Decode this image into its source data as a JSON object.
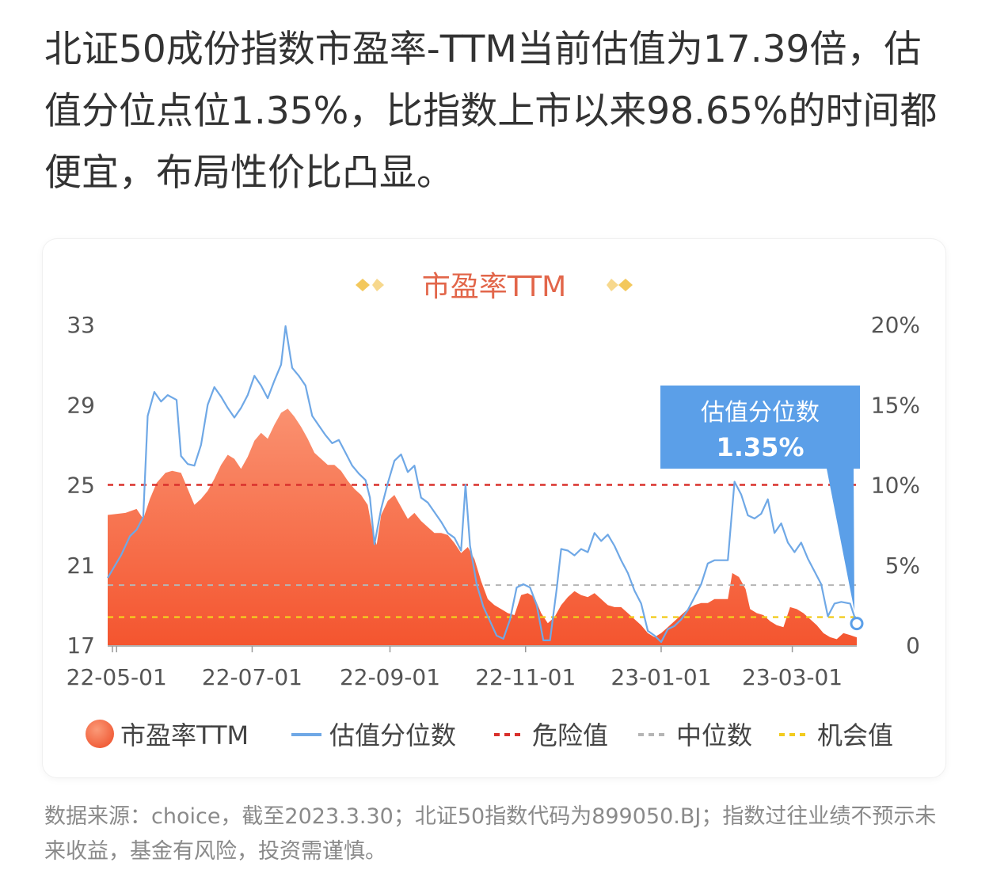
{
  "headline": "北证50成份指数市盈率-TTM当前估值为17.39倍，估值分位点位1.35%，比指数上市以来98.65%的时间都便宜，布局性价比凸显。",
  "footnote": "数据来源：choice，截至2023.3.30；北证50指数代码为899050.BJ；指数过往业绩不预示未来收益，基金有风险，投资需谨慎。",
  "colors": {
    "pe_fill_top": "#f98a6a",
    "pe_fill_bottom": "#f5603c",
    "percentile_line": "#6fa8e6",
    "danger": "#d9302c",
    "median": "#b5b5b5",
    "opportunity": "#f2cc1f",
    "callout": "#5b9fe8",
    "title": "#e2664a",
    "title_deco": "#f1c65f"
  },
  "chart_data": {
    "type": "area",
    "title": "市盈率TTM",
    "x_ticks": [
      "22-05-01",
      "22-07-01",
      "22-09-01",
      "22-11-01",
      "23-01-01",
      "23-03-01"
    ],
    "x_range": [
      "2022-04-27",
      "2023-03-30"
    ],
    "y_left": {
      "ticks": [
        "33",
        "29",
        "25",
        "21",
        "17"
      ],
      "min": 17,
      "max": 33
    },
    "y_right": {
      "ticks": [
        "20%",
        "15%",
        "10%",
        "5%",
        "0"
      ],
      "min": 0,
      "max": 20
    },
    "legend": {
      "items": [
        {
          "label": "市盈率TTM",
          "kind": "area"
        },
        {
          "label": "估值分位数",
          "kind": "line"
        },
        {
          "label": "危险值",
          "kind": "dashed"
        },
        {
          "label": "中位数",
          "kind": "dashed"
        },
        {
          "label": "机会值",
          "kind": "dashed"
        }
      ],
      "position": "bottom"
    },
    "reference_lines": {
      "danger_pe": 25.0,
      "median_pe": 20.0,
      "opportunity_pe": 18.4
    },
    "callout": {
      "title": "估值分位数",
      "value": "1.35%",
      "date": "2023-03-30",
      "percentile": 1.35
    },
    "series": [
      {
        "name": "市盈率TTM",
        "axis": "left",
        "points": [
          [
            "2022-04-27",
            23.5
          ],
          [
            "2022-05-05",
            23.6
          ],
          [
            "2022-05-10",
            23.8
          ],
          [
            "2022-05-13",
            23.3
          ],
          [
            "2022-05-16",
            24.3
          ],
          [
            "2022-05-19",
            25.1
          ],
          [
            "2022-05-23",
            25.6
          ],
          [
            "2022-05-26",
            25.7
          ],
          [
            "2022-05-30",
            25.6
          ],
          [
            "2022-06-02",
            24.8
          ],
          [
            "2022-06-05",
            24.0
          ],
          [
            "2022-06-08",
            24.3
          ],
          [
            "2022-06-11",
            24.7
          ],
          [
            "2022-06-14",
            25.3
          ],
          [
            "2022-06-17",
            26.0
          ],
          [
            "2022-06-20",
            26.5
          ],
          [
            "2022-06-23",
            26.3
          ],
          [
            "2022-06-26",
            25.8
          ],
          [
            "2022-06-29",
            26.4
          ],
          [
            "2022-07-02",
            27.2
          ],
          [
            "2022-07-05",
            27.6
          ],
          [
            "2022-07-08",
            27.3
          ],
          [
            "2022-07-11",
            28.0
          ],
          [
            "2022-07-14",
            28.6
          ],
          [
            "2022-07-17",
            28.8
          ],
          [
            "2022-07-20",
            28.4
          ],
          [
            "2022-07-23",
            27.9
          ],
          [
            "2022-07-26",
            27.3
          ],
          [
            "2022-07-29",
            26.6
          ],
          [
            "2022-08-01",
            26.3
          ],
          [
            "2022-08-04",
            26.0
          ],
          [
            "2022-08-07",
            26.0
          ],
          [
            "2022-08-10",
            25.7
          ],
          [
            "2022-08-13",
            25.2
          ],
          [
            "2022-08-16",
            24.8
          ],
          [
            "2022-08-19",
            24.5
          ],
          [
            "2022-08-22",
            24.0
          ],
          [
            "2022-08-24",
            22.8
          ],
          [
            "2022-08-26",
            22.0
          ],
          [
            "2022-08-28",
            23.5
          ],
          [
            "2022-08-31",
            24.2
          ],
          [
            "2022-09-03",
            24.5
          ],
          [
            "2022-09-06",
            23.9
          ],
          [
            "2022-09-09",
            23.3
          ],
          [
            "2022-09-12",
            23.6
          ],
          [
            "2022-09-15",
            23.2
          ],
          [
            "2022-09-18",
            22.9
          ],
          [
            "2022-09-21",
            22.6
          ],
          [
            "2022-09-24",
            22.6
          ],
          [
            "2022-09-27",
            22.5
          ],
          [
            "2022-09-30",
            22.1
          ],
          [
            "2022-10-03",
            21.6
          ],
          [
            "2022-10-06",
            21.9
          ],
          [
            "2022-10-09",
            21.3
          ],
          [
            "2022-10-12",
            20.2
          ],
          [
            "2022-10-15",
            19.3
          ],
          [
            "2022-10-18",
            19.0
          ],
          [
            "2022-10-21",
            18.8
          ],
          [
            "2022-10-24",
            18.6
          ],
          [
            "2022-10-27",
            18.5
          ],
          [
            "2022-10-30",
            19.5
          ],
          [
            "2022-11-02",
            19.6
          ],
          [
            "2022-11-05",
            19.4
          ],
          [
            "2022-11-08",
            18.6
          ],
          [
            "2022-11-11",
            18.1
          ],
          [
            "2022-11-14",
            18.4
          ],
          [
            "2022-11-17",
            19.0
          ],
          [
            "2022-11-20",
            19.4
          ],
          [
            "2022-11-23",
            19.7
          ],
          [
            "2022-11-26",
            19.5
          ],
          [
            "2022-11-29",
            19.4
          ],
          [
            "2022-12-02",
            19.6
          ],
          [
            "2022-12-05",
            19.3
          ],
          [
            "2022-12-08",
            19.0
          ],
          [
            "2022-12-11",
            18.9
          ],
          [
            "2022-12-14",
            18.9
          ],
          [
            "2022-12-17",
            18.6
          ],
          [
            "2022-12-20",
            18.3
          ],
          [
            "2022-12-23",
            18.0
          ],
          [
            "2022-12-26",
            17.6
          ],
          [
            "2022-12-29",
            17.4
          ],
          [
            "2023-01-01",
            17.6
          ],
          [
            "2023-01-04",
            17.9
          ],
          [
            "2023-01-07",
            18.2
          ],
          [
            "2023-01-10",
            18.5
          ],
          [
            "2023-01-13",
            18.8
          ],
          [
            "2023-01-16",
            19.0
          ],
          [
            "2023-01-19",
            19.1
          ],
          [
            "2023-01-22",
            19.1
          ],
          [
            "2023-01-25",
            19.3
          ],
          [
            "2023-01-28",
            19.3
          ],
          [
            "2023-01-31",
            19.3
          ],
          [
            "2023-02-02",
            20.6
          ],
          [
            "2023-02-05",
            20.4
          ],
          [
            "2023-02-08",
            19.8
          ],
          [
            "2023-02-10",
            18.8
          ],
          [
            "2023-02-13",
            18.6
          ],
          [
            "2023-02-16",
            18.5
          ],
          [
            "2023-02-19",
            18.2
          ],
          [
            "2023-02-22",
            18.0
          ],
          [
            "2023-02-25",
            17.9
          ],
          [
            "2023-02-28",
            18.9
          ],
          [
            "2023-03-03",
            18.8
          ],
          [
            "2023-03-06",
            18.6
          ],
          [
            "2023-03-09",
            18.3
          ],
          [
            "2023-03-12",
            18.0
          ],
          [
            "2023-03-15",
            17.6
          ],
          [
            "2023-03-18",
            17.4
          ],
          [
            "2023-03-21",
            17.3
          ],
          [
            "2023-03-24",
            17.6
          ],
          [
            "2023-03-27",
            17.5
          ],
          [
            "2023-03-30",
            17.39
          ]
        ]
      },
      {
        "name": "估值分位数",
        "axis": "right",
        "points": [
          [
            "2022-04-27",
            4.2
          ],
          [
            "2022-05-03",
            5.6
          ],
          [
            "2022-05-07",
            6.8
          ],
          [
            "2022-05-10",
            7.2
          ],
          [
            "2022-05-13",
            8.0
          ],
          [
            "2022-05-15",
            14.3
          ],
          [
            "2022-05-18",
            15.8
          ],
          [
            "2022-05-21",
            15.2
          ],
          [
            "2022-05-24",
            15.6
          ],
          [
            "2022-05-28",
            15.3
          ],
          [
            "2022-05-30",
            11.8
          ],
          [
            "2022-06-02",
            11.3
          ],
          [
            "2022-06-05",
            11.2
          ],
          [
            "2022-06-08",
            12.5
          ],
          [
            "2022-06-11",
            15.0
          ],
          [
            "2022-06-14",
            16.1
          ],
          [
            "2022-06-17",
            15.5
          ],
          [
            "2022-06-20",
            14.8
          ],
          [
            "2022-06-23",
            14.2
          ],
          [
            "2022-06-26",
            14.8
          ],
          [
            "2022-06-29",
            15.6
          ],
          [
            "2022-07-02",
            16.8
          ],
          [
            "2022-07-05",
            16.2
          ],
          [
            "2022-07-08",
            15.4
          ],
          [
            "2022-07-11",
            16.5
          ],
          [
            "2022-07-14",
            17.5
          ],
          [
            "2022-07-16",
            19.9
          ],
          [
            "2022-07-19",
            17.3
          ],
          [
            "2022-07-22",
            16.8
          ],
          [
            "2022-07-25",
            16.2
          ],
          [
            "2022-07-28",
            14.3
          ],
          [
            "2022-07-31",
            13.7
          ],
          [
            "2022-08-03",
            13.1
          ],
          [
            "2022-08-06",
            12.6
          ],
          [
            "2022-08-09",
            12.8
          ],
          [
            "2022-08-12",
            12.0
          ],
          [
            "2022-08-15",
            11.2
          ],
          [
            "2022-08-18",
            10.7
          ],
          [
            "2022-08-21",
            10.3
          ],
          [
            "2022-08-23",
            9.2
          ],
          [
            "2022-08-25",
            6.3
          ],
          [
            "2022-08-28",
            8.5
          ],
          [
            "2022-08-31",
            10.1
          ],
          [
            "2022-09-03",
            11.5
          ],
          [
            "2022-09-06",
            11.9
          ],
          [
            "2022-09-09",
            10.8
          ],
          [
            "2022-09-12",
            11.2
          ],
          [
            "2022-09-15",
            9.2
          ],
          [
            "2022-09-18",
            8.9
          ],
          [
            "2022-09-21",
            8.3
          ],
          [
            "2022-09-24",
            7.7
          ],
          [
            "2022-09-27",
            7.0
          ],
          [
            "2022-09-30",
            6.7
          ],
          [
            "2022-10-03",
            5.9
          ],
          [
            "2022-10-05",
            10.0
          ],
          [
            "2022-10-07",
            6.2
          ],
          [
            "2022-10-10",
            3.8
          ],
          [
            "2022-10-13",
            2.4
          ],
          [
            "2022-10-16",
            1.5
          ],
          [
            "2022-10-19",
            0.6
          ],
          [
            "2022-10-22",
            0.4
          ],
          [
            "2022-10-25",
            1.6
          ],
          [
            "2022-10-28",
            3.6
          ],
          [
            "2022-10-31",
            3.8
          ],
          [
            "2022-11-03",
            3.6
          ],
          [
            "2022-11-06",
            2.5
          ],
          [
            "2022-11-09",
            0.3
          ],
          [
            "2022-11-12",
            0.3
          ],
          [
            "2022-11-15",
            3.5
          ],
          [
            "2022-11-17",
            6.0
          ],
          [
            "2022-11-20",
            5.9
          ],
          [
            "2022-11-23",
            5.6
          ],
          [
            "2022-11-26",
            6.0
          ],
          [
            "2022-11-29",
            5.8
          ],
          [
            "2022-12-02",
            7.0
          ],
          [
            "2022-12-05",
            6.5
          ],
          [
            "2022-12-08",
            6.9
          ],
          [
            "2022-12-11",
            6.2
          ],
          [
            "2022-12-14",
            5.3
          ],
          [
            "2022-12-17",
            4.5
          ],
          [
            "2022-12-20",
            3.4
          ],
          [
            "2022-12-23",
            2.6
          ],
          [
            "2022-12-26",
            0.9
          ],
          [
            "2022-12-29",
            0.6
          ],
          [
            "2023-01-01",
            0.2
          ],
          [
            "2023-01-04",
            1.0
          ],
          [
            "2023-01-07",
            1.2
          ],
          [
            "2023-01-10",
            1.6
          ],
          [
            "2023-01-13",
            2.2
          ],
          [
            "2023-01-16",
            3.0
          ],
          [
            "2023-01-19",
            3.8
          ],
          [
            "2023-01-22",
            5.1
          ],
          [
            "2023-01-25",
            5.3
          ],
          [
            "2023-01-28",
            5.3
          ],
          [
            "2023-01-31",
            5.3
          ],
          [
            "2023-02-03",
            10.2
          ],
          [
            "2023-02-06",
            9.4
          ],
          [
            "2023-02-09",
            8.1
          ],
          [
            "2023-02-12",
            7.9
          ],
          [
            "2023-02-15",
            8.2
          ],
          [
            "2023-02-18",
            9.1
          ],
          [
            "2023-02-21",
            7.0
          ],
          [
            "2023-02-24",
            7.6
          ],
          [
            "2023-02-27",
            6.4
          ],
          [
            "2023-03-02",
            5.8
          ],
          [
            "2023-03-05",
            6.4
          ],
          [
            "2023-03-08",
            5.4
          ],
          [
            "2023-03-11",
            4.6
          ],
          [
            "2023-03-14",
            3.8
          ],
          [
            "2023-03-17",
            1.8
          ],
          [
            "2023-03-20",
            2.6
          ],
          [
            "2023-03-23",
            2.7
          ],
          [
            "2023-03-27",
            2.6
          ],
          [
            "2023-03-30",
            1.35
          ]
        ]
      }
    ]
  }
}
